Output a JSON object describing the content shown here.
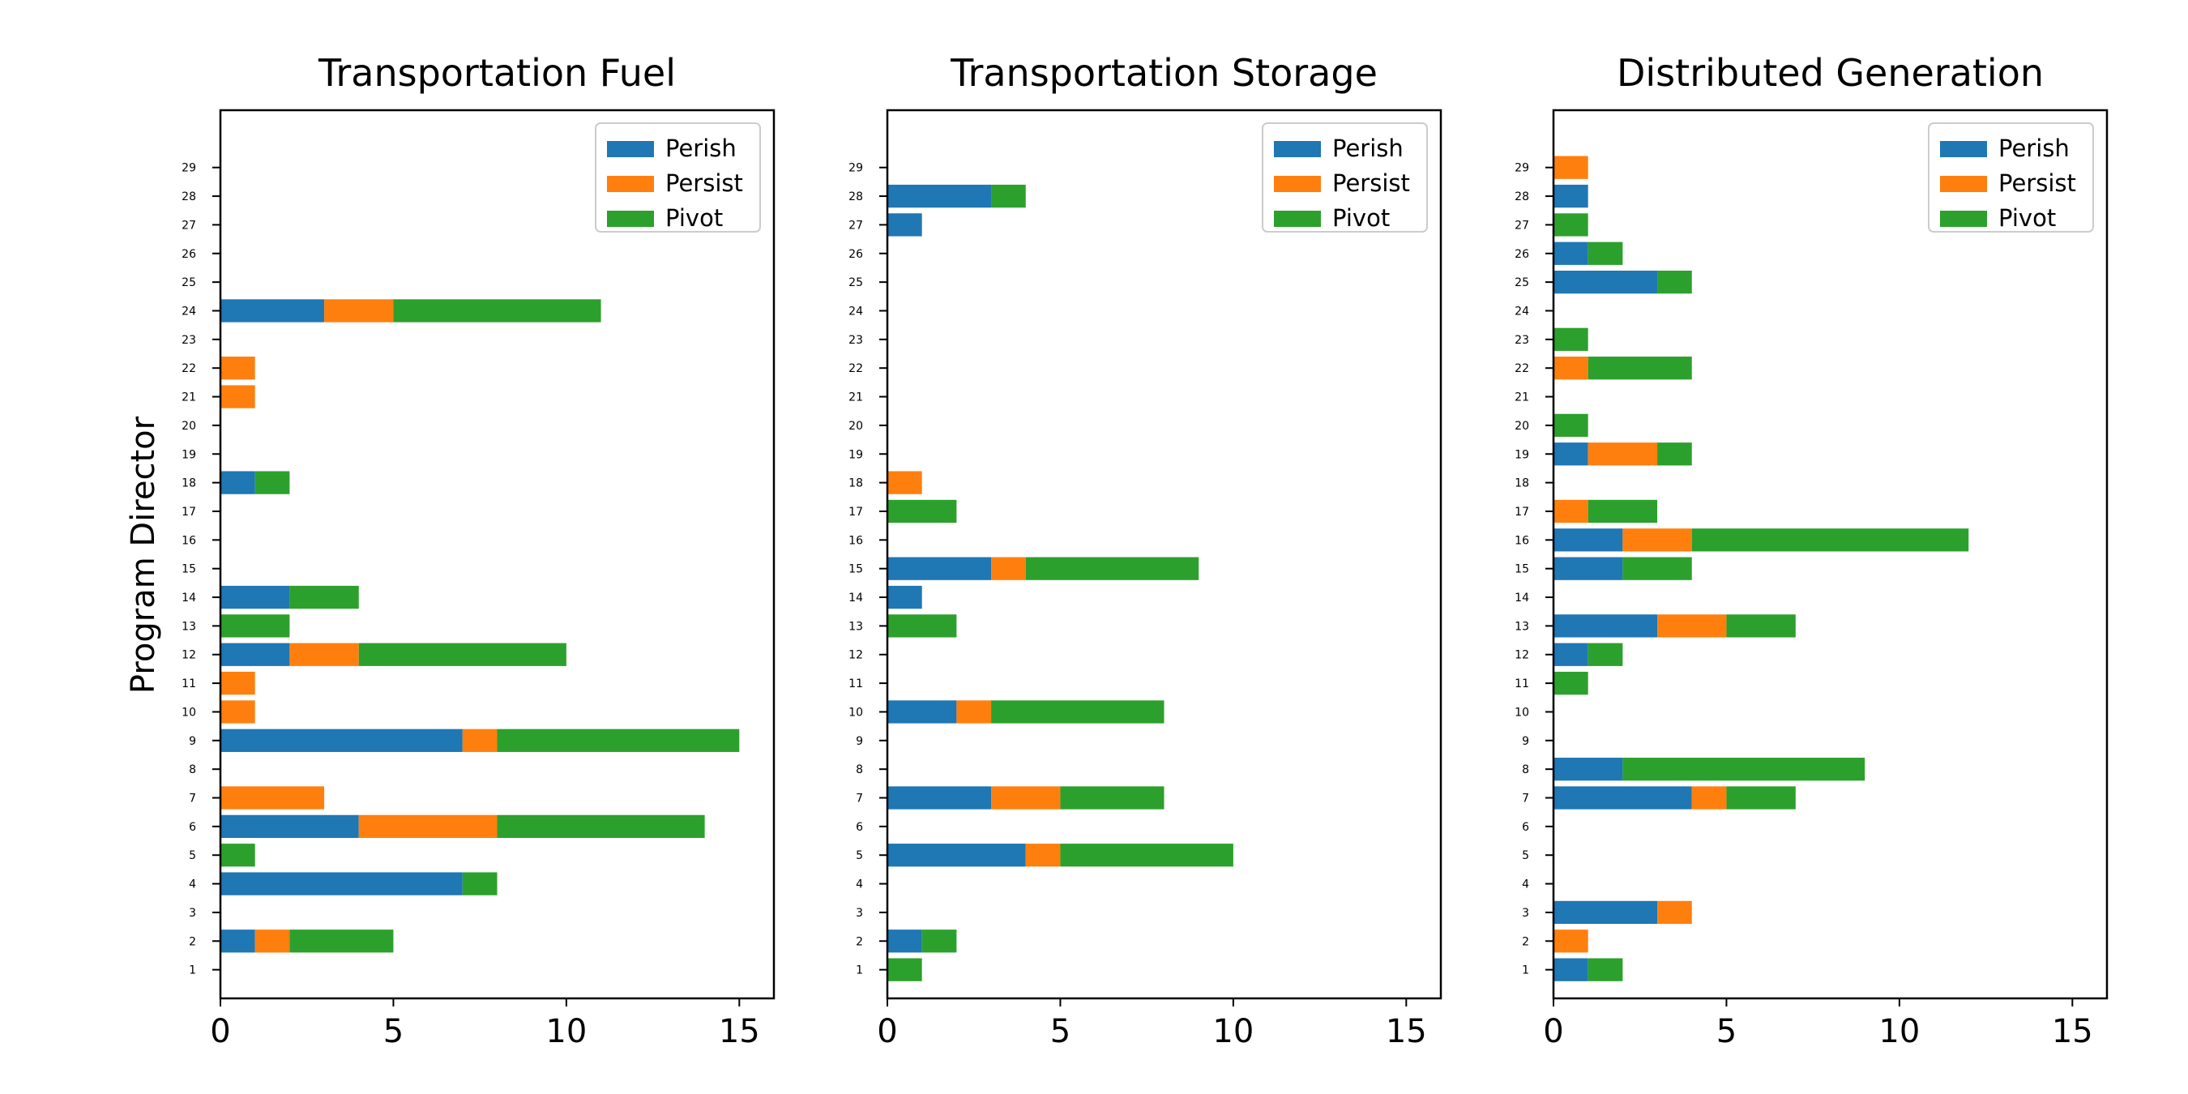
{
  "figure": {
    "ylabel": "Program Director"
  },
  "legend": {
    "placement": "top-right"
  },
  "chart_data": [
    {
      "type": "bar",
      "orientation": "horizontal",
      "stacked": true,
      "title": "Transportation Fuel",
      "xlim": [
        0,
        16
      ],
      "xticks": [
        0,
        5,
        10,
        15
      ],
      "categories": [
        "1",
        "2",
        "3",
        "4",
        "5",
        "6",
        "7",
        "8",
        "9",
        "10",
        "11",
        "12",
        "13",
        "14",
        "15",
        "16",
        "17",
        "18",
        "19",
        "20",
        "21",
        "22",
        "23",
        "24",
        "25",
        "26",
        "27",
        "28",
        "29"
      ],
      "series": [
        {
          "name": "Perish",
          "color": "#1f77b4",
          "values": [
            0,
            1,
            0,
            7,
            0,
            4,
            0,
            0,
            7,
            0,
            0,
            2,
            0,
            2,
            0,
            0,
            0,
            1,
            0,
            0,
            0,
            0,
            0,
            3,
            0,
            0,
            0,
            0,
            0
          ]
        },
        {
          "name": "Persist",
          "color": "#ff7f0e",
          "values": [
            0,
            1,
            0,
            0,
            0,
            4,
            3,
            0,
            1,
            1,
            1,
            2,
            0,
            0,
            0,
            0,
            0,
            0,
            0,
            0,
            1,
            1,
            0,
            2,
            0,
            0,
            0,
            0,
            0
          ]
        },
        {
          "name": "Pivot",
          "color": "#2ca02c",
          "values": [
            0,
            3,
            0,
            1,
            1,
            6,
            0,
            0,
            7,
            0,
            0,
            6,
            2,
            2,
            0,
            0,
            0,
            1,
            0,
            0,
            0,
            0,
            0,
            6,
            0,
            0,
            0,
            0,
            0
          ]
        }
      ]
    },
    {
      "type": "bar",
      "orientation": "horizontal",
      "stacked": true,
      "title": "Transportation Storage",
      "xlim": [
        0,
        16
      ],
      "xticks": [
        0,
        5,
        10,
        15
      ],
      "categories": [
        "1",
        "2",
        "3",
        "4",
        "5",
        "6",
        "7",
        "8",
        "9",
        "10",
        "11",
        "12",
        "13",
        "14",
        "15",
        "16",
        "17",
        "18",
        "19",
        "20",
        "21",
        "22",
        "23",
        "24",
        "25",
        "26",
        "27",
        "28",
        "29"
      ],
      "series": [
        {
          "name": "Perish",
          "color": "#1f77b4",
          "values": [
            0,
            1,
            0,
            0,
            4,
            0,
            3,
            0,
            0,
            2,
            0,
            0,
            0,
            1,
            3,
            0,
            0,
            0,
            0,
            0,
            0,
            0,
            0,
            0,
            0,
            0,
            1,
            3,
            0
          ]
        },
        {
          "name": "Persist",
          "color": "#ff7f0e",
          "values": [
            0,
            0,
            0,
            0,
            1,
            0,
            2,
            0,
            0,
            1,
            0,
            0,
            0,
            0,
            1,
            0,
            0,
            1,
            0,
            0,
            0,
            0,
            0,
            0,
            0,
            0,
            0,
            0,
            0
          ]
        },
        {
          "name": "Pivot",
          "color": "#2ca02c",
          "values": [
            1,
            1,
            0,
            0,
            5,
            0,
            3,
            0,
            0,
            5,
            0,
            0,
            2,
            0,
            5,
            0,
            2,
            0,
            0,
            0,
            0,
            0,
            0,
            0,
            0,
            0,
            0,
            1,
            0
          ]
        }
      ]
    },
    {
      "type": "bar",
      "orientation": "horizontal",
      "stacked": true,
      "title": "Distributed Generation",
      "xlim": [
        0,
        16
      ],
      "xticks": [
        0,
        5,
        10,
        15
      ],
      "categories": [
        "1",
        "2",
        "3",
        "4",
        "5",
        "6",
        "7",
        "8",
        "9",
        "10",
        "11",
        "12",
        "13",
        "14",
        "15",
        "16",
        "17",
        "18",
        "19",
        "20",
        "21",
        "22",
        "23",
        "24",
        "25",
        "26",
        "27",
        "28",
        "29"
      ],
      "series": [
        {
          "name": "Perish",
          "color": "#1f77b4",
          "values": [
            1,
            0,
            3,
            0,
            0,
            0,
            4,
            2,
            0,
            0,
            0,
            1,
            3,
            0,
            2,
            2,
            0,
            0,
            1,
            0,
            0,
            0,
            0,
            0,
            3,
            1,
            0,
            1,
            0
          ]
        },
        {
          "name": "Persist",
          "color": "#ff7f0e",
          "values": [
            0,
            1,
            1,
            0,
            0,
            0,
            1,
            0,
            0,
            0,
            0,
            0,
            2,
            0,
            0,
            2,
            1,
            0,
            2,
            0,
            0,
            1,
            0,
            0,
            0,
            0,
            0,
            0,
            1
          ]
        },
        {
          "name": "Pivot",
          "color": "#2ca02c",
          "values": [
            1,
            0,
            0,
            0,
            0,
            0,
            2,
            7,
            0,
            0,
            1,
            1,
            2,
            0,
            2,
            8,
            2,
            0,
            1,
            1,
            0,
            3,
            1,
            0,
            1,
            1,
            1,
            0,
            0
          ]
        }
      ]
    }
  ]
}
